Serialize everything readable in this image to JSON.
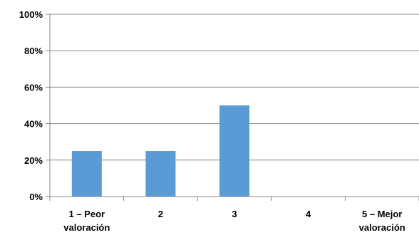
{
  "chart_data": {
    "type": "bar",
    "categories": [
      [
        "1 – Peor",
        "valoración"
      ],
      [
        "2"
      ],
      [
        "3"
      ],
      [
        "4"
      ],
      [
        "5 – Mejor",
        "valoración"
      ]
    ],
    "values": [
      25,
      25,
      50,
      0,
      0
    ],
    "y_ticks": [
      "0%",
      "20%",
      "40%",
      "60%",
      "80%",
      "100%"
    ],
    "ylim": [
      0,
      100
    ],
    "grid": true,
    "legend": "none",
    "bar_color": "#5B9BD5",
    "grid_color": "#878787",
    "axis_color": "#878787"
  }
}
